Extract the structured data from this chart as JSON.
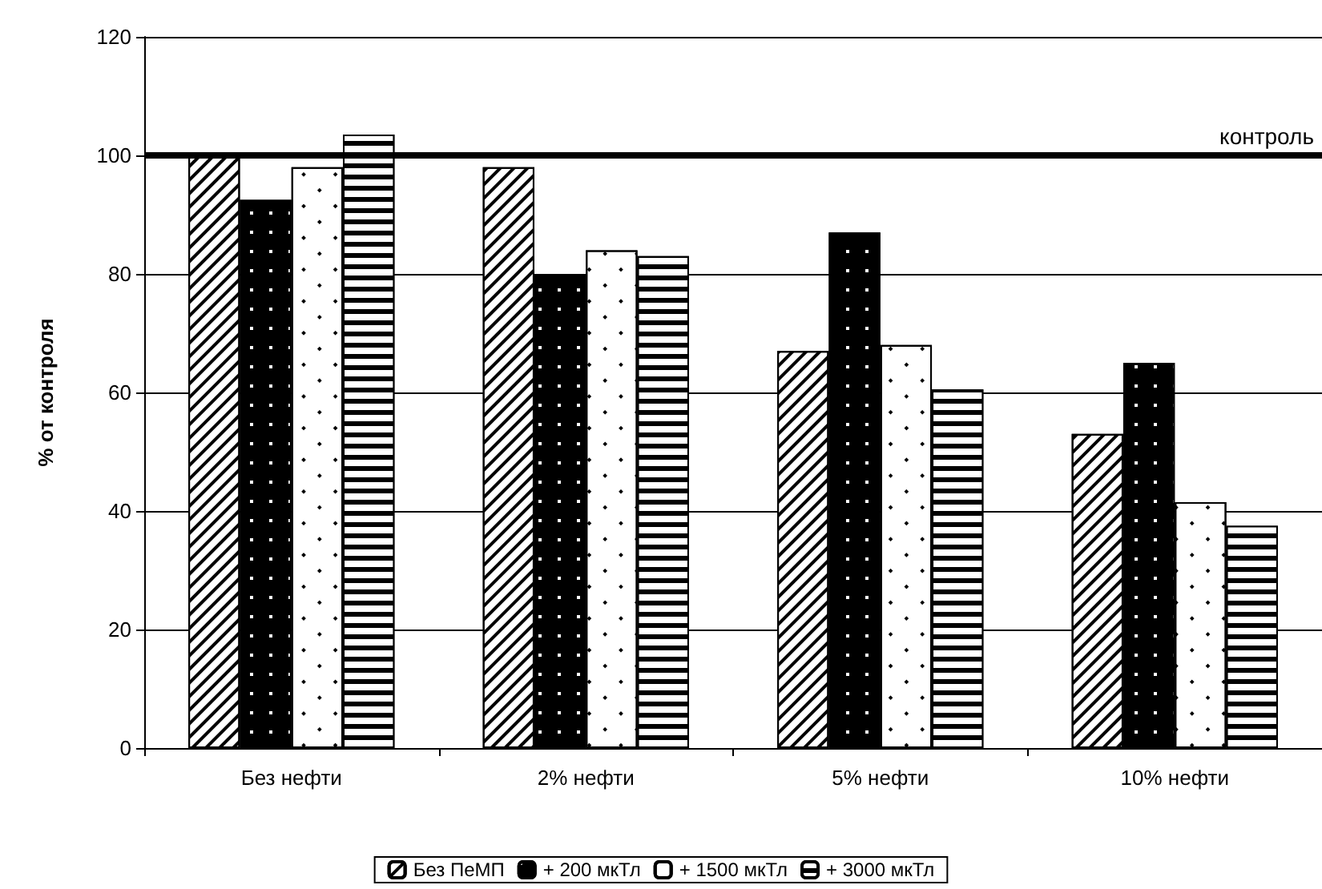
{
  "chart_data": {
    "type": "bar",
    "ylabel": "% от контроля",
    "categories": [
      "Без нефти",
      "2% нефти",
      "5% нефти",
      "10% нефти"
    ],
    "series": [
      {
        "name": "Без ПеМП",
        "color": "#ffffff",
        "values": [
          100,
          98,
          67,
          53
        ]
      },
      {
        "name": "+ 200 мкТл",
        "color": "#000000",
        "values": [
          92.5,
          80,
          87,
          65
        ]
      },
      {
        "name": "+ 1500 мкТл",
        "color": "#ffffff",
        "values": [
          98,
          84,
          68,
          41.5
        ]
      },
      {
        "name": "+ 3000 мкТл",
        "color": "#000000",
        "values": [
          103.5,
          83,
          60.5,
          37.5
        ]
      }
    ],
    "ylim": [
      0,
      120
    ],
    "yticks": [
      0,
      20,
      40,
      60,
      80,
      100,
      120
    ],
    "grid": "y",
    "legend": "bottom",
    "ref_lines": [
      {
        "axis": "y",
        "value": 100,
        "label": "контроль",
        "color": "#000000"
      }
    ]
  }
}
